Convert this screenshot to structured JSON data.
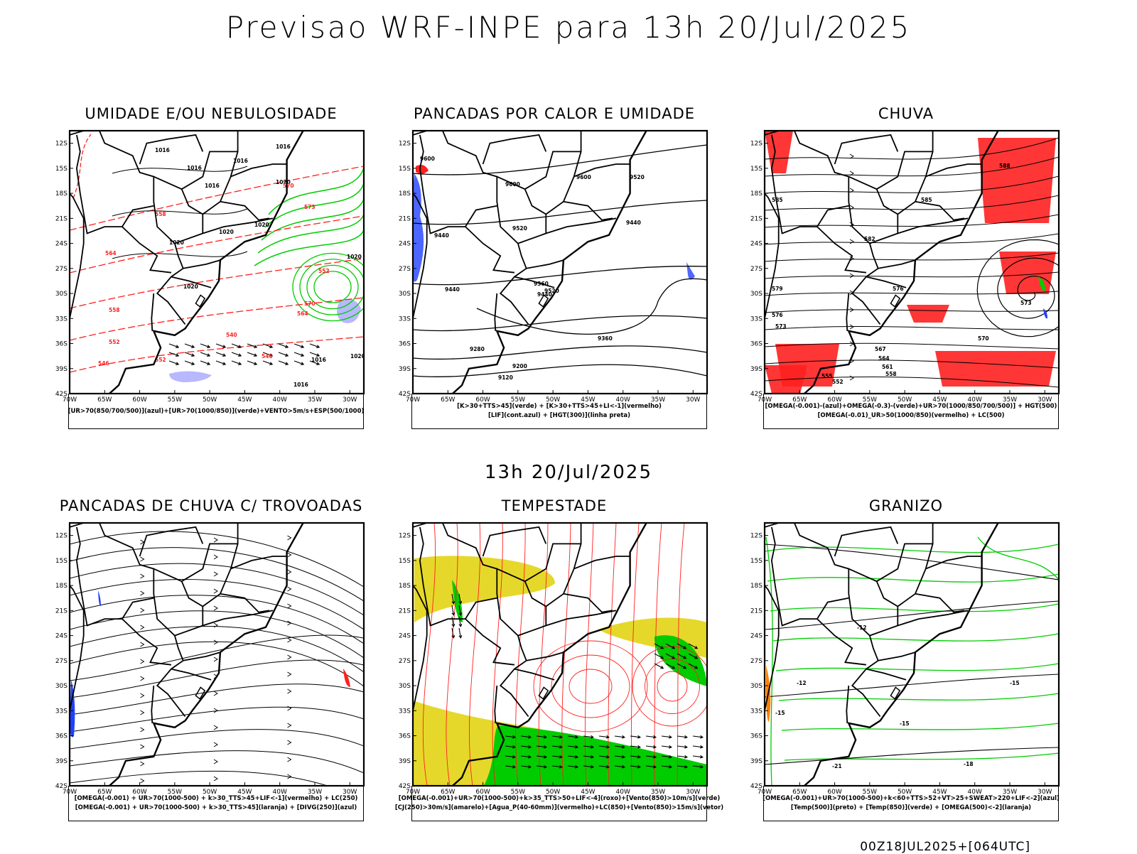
{
  "header": {
    "title": "Previsao WRF-INPE  para 13h 20/Jul/2025",
    "subtitle": "13h 20/Jul/2025"
  },
  "footer": {
    "run_info": "00Z18JUL2025+[064UTC]"
  },
  "map_axes": {
    "lat_labels": [
      "12S",
      "15S",
      "18S",
      "21S",
      "24S",
      "27S",
      "30S",
      "33S",
      "36S",
      "39S",
      "42S"
    ],
    "lon_labels": [
      "70W",
      "65W",
      "60W",
      "55W",
      "50W",
      "45W",
      "40W",
      "35W",
      "30W"
    ]
  },
  "panels": [
    {
      "id": "umidade",
      "title": "UMIDADE E/OU NEBULOSIDADE",
      "legend": [
        "[UR>70(850/700/500)](azul)+[UR>70(1000/850)](verde)+VENTO>5m/s+ESP(500/1000)"
      ],
      "contour_labels": [
        "1016",
        "1016",
        "1016",
        "1016",
        "1016",
        "1020",
        "1020",
        "1020",
        "1020",
        "1020",
        "1016",
        "570",
        "570",
        "573",
        "564",
        "564",
        "558",
        "558",
        "552",
        "552",
        "546",
        "540",
        "546",
        "552",
        "1020",
        "1020",
        "1016"
      ]
    },
    {
      "id": "pancadas_calor",
      "title": "PANCADAS POR CALOR E UMIDADE",
      "legend": [
        "[K>30+TTS>45](verde)  +  [K>30+TTS>45+LI<-1](vermelho)",
        "[LIF](cont.azul)  +  [HGT(300)](linha preta)"
      ],
      "contour_labels": [
        "9600",
        "9600",
        "9600",
        "9520",
        "9440",
        "9520",
        "9440",
        "9520",
        "9440",
        "9360",
        "9440",
        "9360",
        "9280",
        "9200",
        "9120"
      ]
    },
    {
      "id": "chuva",
      "title": "CHUVA",
      "legend": [
        "[OMEGA(-0.001)-(azul)+OMEGA(-0.3)-(verde)+UR>70(1000/850/700/500)]  +  HGT(500)",
        "[OMEGA(-0.01)_UR>50(1000/850)(vermelho)  +  LC(500)"
      ],
      "contour_labels": [
        "588",
        "585",
        "585",
        "582",
        "579",
        "576",
        "576",
        "573",
        "573",
        "570",
        "567",
        "564",
        "561",
        "558",
        "555",
        "552"
      ]
    },
    {
      "id": "pancadas_trovoadas",
      "title": "PANCADAS DE CHUVA C/ TROVOADAS",
      "legend": [
        "[OMEGA(-0.001)  +  UR>70(1000-500)  +  k>30_TTS>45+LIF<-1](vermelho)  +  LC(250)",
        "[OMEGA(-0.001)  +  UR>70(1000-500)  +  k>30_TTS>45](laranja)  +  [DIVG(250)](azul)"
      ],
      "contour_labels": []
    },
    {
      "id": "tempestade",
      "title": "TEMPESTADE",
      "legend": [
        "[OMEGA(-0.001)+UR>70(1000-500)+k>35_TTS>50+LIF<-4](roxo)+[Vento(850)>10m/s](verde)",
        "[CJ(250)>30m/s](amarelo)+[Agua_P(40-60mm)](vermelho)+LC(850)+[Vento(850)>15m/s](vetor)"
      ],
      "contour_labels": []
    },
    {
      "id": "granizo",
      "title": "GRANIZO",
      "legend": [
        "[OMEGA(-0.001)+UR>70(1000-500)+k<60+TTS>52+VT>25+SWEAT>220+LIF<-2](azul)",
        "[Temp(500)](preto)  +  [Temp(850)](verde)  +  [OMEGA(500)<-2](laranja)"
      ],
      "contour_labels": [
        "-12",
        "-12",
        "-15",
        "-15",
        "-15",
        "-18",
        "-21"
      ]
    }
  ],
  "colors": {
    "land_border": "#000000",
    "green": "#00cc00",
    "red": "#ff2020",
    "blue": "#2040ff",
    "yellow": "#e6d82a",
    "lavender": "#b8b8ff",
    "orange": "#ff8000"
  }
}
